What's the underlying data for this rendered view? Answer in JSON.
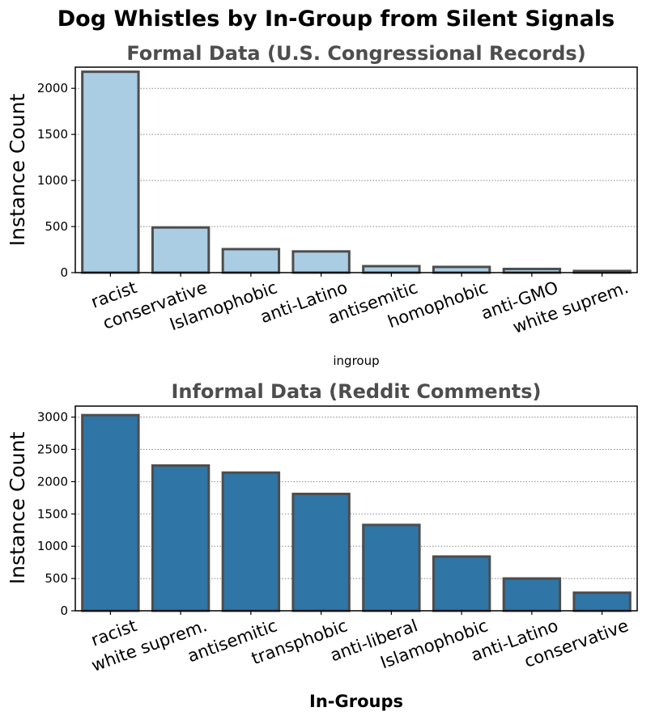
{
  "title": "Dog Whistles by In-Group from Silent Signals",
  "chart_data": [
    {
      "type": "bar",
      "title": "Formal Data (U.S. Congressional Records)",
      "xlabel": "ingroup",
      "ylabel": "Instance Count",
      "categories": [
        "racist",
        "conservative",
        "Islamophobic",
        "anti-Latino",
        "antisemitic",
        "homophobic",
        "anti-GMO",
        "white suprem."
      ],
      "values": [
        2180,
        490,
        255,
        230,
        70,
        62,
        40,
        18
      ],
      "ylim": [
        0,
        2230
      ],
      "yticks": [
        0,
        500,
        1000,
        1500,
        2000
      ],
      "bar_color": "#abcde3",
      "edge_color": "#4d4d4d",
      "grid": "horizontal dotted"
    },
    {
      "type": "bar",
      "title": "Informal Data (Reddit Comments)",
      "xlabel": "In-Groups",
      "ylabel": "Instance Count",
      "categories": [
        "racist",
        "white suprem.",
        "antisemitic",
        "transphobic",
        "anti-liberal",
        "Islamophobic",
        "anti-Latino",
        "conservative"
      ],
      "values": [
        3030,
        2250,
        2140,
        1810,
        1330,
        840,
        500,
        280
      ],
      "ylim": [
        0,
        3170
      ],
      "yticks": [
        0,
        500,
        1000,
        1500,
        2000,
        2500,
        3000
      ],
      "bar_color": "#2f75a6",
      "edge_color": "#4d4d4d",
      "grid": "horizontal dotted"
    }
  ]
}
